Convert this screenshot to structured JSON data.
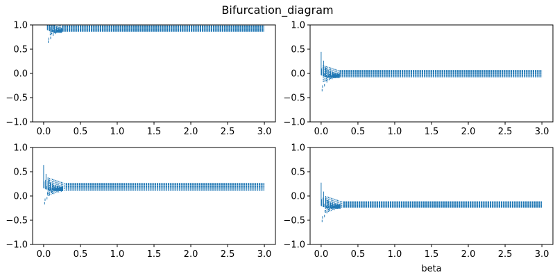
{
  "figure": {
    "suptitle": "Bifurcation_diagram"
  },
  "chart_data": {
    "type": "scatter",
    "title": "Bifurcation_diagram",
    "layout": "2x2 subplots",
    "marker_color": "#1f77b4",
    "background": "#ffffff",
    "subplots": [
      {
        "id": "top-left",
        "xlabel": "",
        "xlim": [
          -0.15,
          3.15
        ],
        "ylim": [
          -1.0,
          1.0
        ],
        "xticks": [
          0.0,
          0.5,
          1.0,
          1.5,
          2.0,
          2.5,
          3.0
        ],
        "xtick_labels": [
          "0.0",
          "0.5",
          "1.0",
          "1.5",
          "2.0",
          "2.5",
          "3.0"
        ],
        "yticks": [
          -1.0,
          -0.5,
          0.0,
          0.5,
          1.0
        ],
        "ytick_labels": [
          "−1.0",
          "−0.5",
          "0.0",
          "0.5",
          "1.0"
        ],
        "transient": {
          "start": 0.05,
          "amplitude": 0.3
        },
        "band": {
          "x_start": 0.25,
          "x_end": 3.0,
          "y_low": 0.87,
          "y_high": 0.98
        }
      },
      {
        "id": "top-right",
        "xlabel": "",
        "xlim": [
          -0.15,
          3.15
        ],
        "ylim": [
          -1.0,
          1.0
        ],
        "xticks": [
          0.0,
          0.5,
          1.0,
          1.5,
          2.0,
          2.5,
          3.0
        ],
        "xtick_labels": [
          "0.0",
          "0.5",
          "1.0",
          "1.5",
          "2.0",
          "2.5",
          "3.0"
        ],
        "yticks": [
          -1.0,
          -0.5,
          0.0,
          0.5,
          1.0
        ],
        "ytick_labels": [
          "−1.0",
          "−0.5",
          "0.0",
          "0.5",
          "1.0"
        ],
        "transient": {
          "start": 0.0,
          "amplitude": 0.4
        },
        "band": {
          "x_start": 0.25,
          "x_end": 3.0,
          "y_low": -0.07,
          "y_high": 0.06
        }
      },
      {
        "id": "bottom-left",
        "xlabel": "",
        "xlim": [
          -0.15,
          3.15
        ],
        "ylim": [
          -1.0,
          1.0
        ],
        "xticks": [
          0.0,
          0.5,
          1.0,
          1.5,
          2.0,
          2.5,
          3.0
        ],
        "xtick_labels": [
          "0.0",
          "0.5",
          "1.0",
          "1.5",
          "2.0",
          "2.5",
          "3.0"
        ],
        "yticks": [
          -1.0,
          -0.5,
          0.0,
          0.5,
          1.0
        ],
        "ytick_labels": [
          "−1.0",
          "−0.5",
          "0.0",
          "0.5",
          "1.0"
        ],
        "transient": {
          "start": 0.0,
          "amplitude": 0.4
        },
        "band": {
          "x_start": 0.3,
          "x_end": 3.0,
          "y_low": 0.12,
          "y_high": 0.26
        }
      },
      {
        "id": "bottom-right",
        "xlabel": "beta",
        "xlim": [
          -0.15,
          3.15
        ],
        "ylim": [
          -1.0,
          1.0
        ],
        "xticks": [
          0.0,
          0.5,
          1.0,
          1.5,
          2.0,
          2.5,
          3.0
        ],
        "xtick_labels": [
          "0.0",
          "0.5",
          "1.0",
          "1.5",
          "2.0",
          "2.5",
          "3.0"
        ],
        "yticks": [
          -1.0,
          -0.5,
          0.0,
          0.5,
          1.0
        ],
        "ytick_labels": [
          "−1.0",
          "−0.5",
          "0.0",
          "0.5",
          "1.0"
        ],
        "transient": {
          "start": 0.0,
          "amplitude": 0.4
        },
        "band": {
          "x_start": 0.3,
          "x_end": 3.0,
          "y_low": -0.23,
          "y_high": -0.12
        }
      }
    ]
  }
}
